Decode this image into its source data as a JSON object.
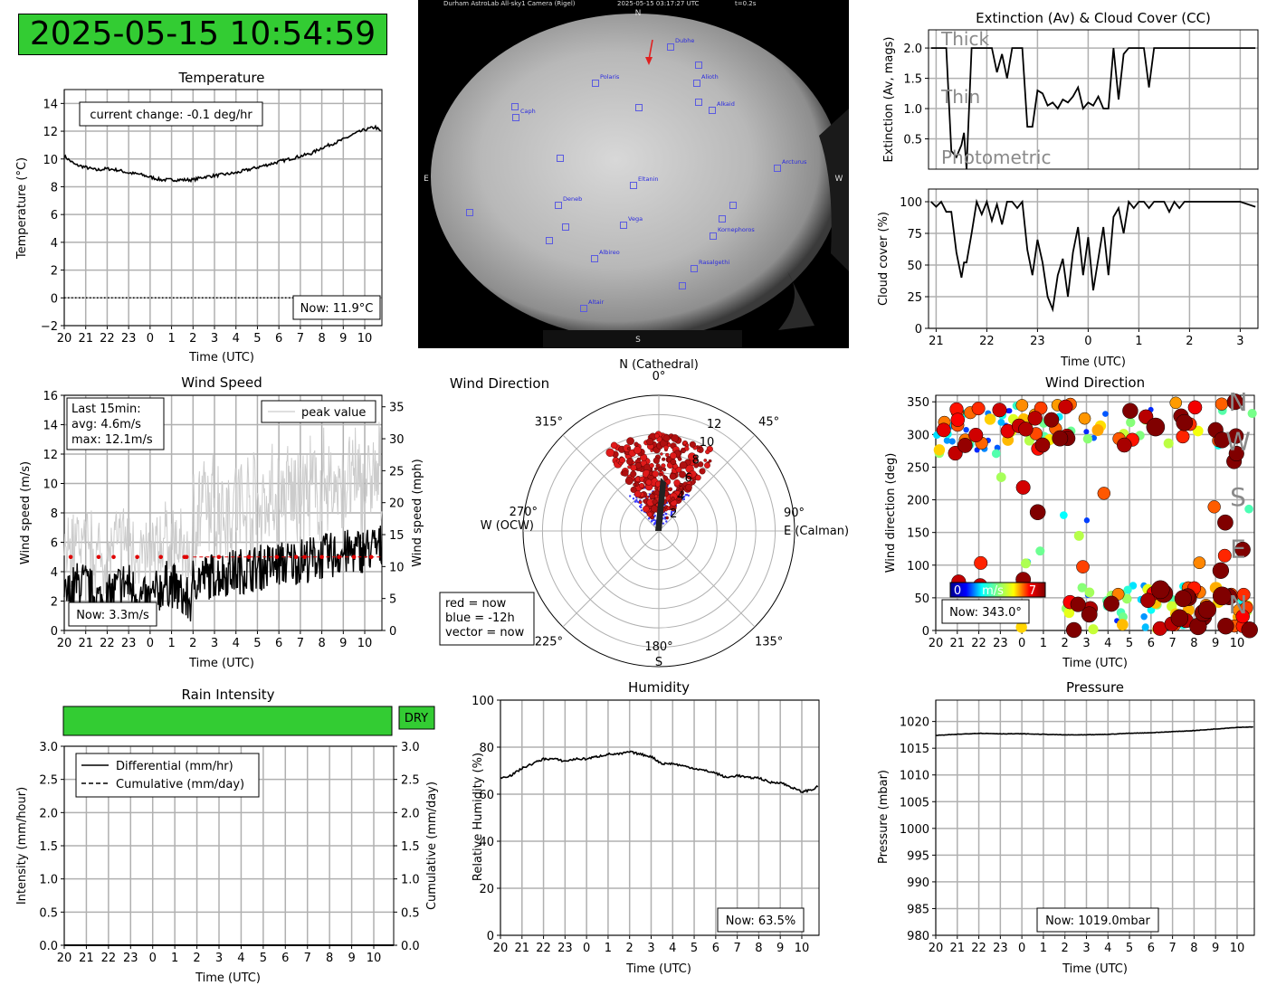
{
  "clock": "2025-05-15 10:54:59",
  "hour_ticks": [
    "20",
    "21",
    "22",
    "23",
    "0",
    "1",
    "2",
    "3",
    "4",
    "5",
    "6",
    "7",
    "8",
    "9",
    "10"
  ],
  "axis_time_label": "Time (UTC)",
  "temperature": {
    "chart_data": {
      "type": "line",
      "title": "Temperature",
      "xlabel": "Time (UTC)",
      "ylabel": "Temperature (°C)",
      "ylim": [
        -2,
        15
      ],
      "yticks": [
        "−2",
        "0",
        "2",
        "4",
        "6",
        "8",
        "10",
        "12",
        "14"
      ],
      "xlim": [
        20,
        34.8
      ],
      "x": [
        20,
        20.5,
        21,
        21.5,
        22,
        22.5,
        23,
        23.5,
        24,
        24.5,
        25,
        25.5,
        26,
        26.5,
        27,
        27.5,
        28,
        28.5,
        29,
        29.5,
        30,
        30.5,
        31,
        31.5,
        32,
        32.5,
        33,
        33.5,
        34,
        34.5,
        34.8
      ],
      "values": [
        10.2,
        9.6,
        9.4,
        9.2,
        9.3,
        9.2,
        9.0,
        8.9,
        8.7,
        8.5,
        8.5,
        8.5,
        8.5,
        8.7,
        8.8,
        8.9,
        9.0,
        9.2,
        9.4,
        9.6,
        9.8,
        10.0,
        10.2,
        10.4,
        10.8,
        11.1,
        11.4,
        11.8,
        12.1,
        12.3,
        11.9
      ],
      "zero_line": 0,
      "grid": true
    },
    "note": "current change: -0.1 deg/hr",
    "now": "Now: 11.9°C"
  },
  "allsky": {
    "header_left": "Durham AstroLab All-sky1 Camera (Rigel)",
    "header_mid": "2025-05-15 03:17:27 UTC",
    "header_right": "t=0.2s",
    "N": "N",
    "S": "S",
    "E": "E",
    "W": "W",
    "stars": [
      {
        "name": "Dubhe",
        "pos": [
          741,
          52
        ]
      },
      {
        "name": "Polaris",
        "pos": [
          658,
          92
        ]
      },
      {
        "name": "Alioth",
        "pos": [
          770,
          92
        ]
      },
      {
        "name": "Alkaid",
        "pos": [
          787,
          122
        ]
      },
      {
        "name": "Caph",
        "pos": [
          570,
          130
        ]
      },
      {
        "name": "Arcturus",
        "pos": [
          859,
          186
        ]
      },
      {
        "name": "Eltanin",
        "pos": [
          700,
          205
        ]
      },
      {
        "name": "Deneb",
        "pos": [
          617,
          227
        ]
      },
      {
        "name": "Vega",
        "pos": [
          689,
          249
        ]
      },
      {
        "name": "Kornephoros",
        "pos": [
          788,
          261
        ]
      },
      {
        "name": "Albireo",
        "pos": [
          657,
          286
        ]
      },
      {
        "name": "Rasalgethi",
        "pos": [
          767,
          297
        ]
      },
      {
        "name": "Altair",
        "pos": [
          645,
          341
        ]
      }
    ],
    "extra_boxes": [
      [
        569,
        118
      ],
      [
        706,
        119
      ],
      [
        772,
        72
      ],
      [
        772,
        113
      ],
      [
        619,
        175
      ],
      [
        810,
        227
      ],
      [
        519,
        235
      ],
      [
        798,
        242
      ],
      [
        625,
        251
      ],
      [
        607,
        266
      ],
      [
        754,
        316
      ]
    ]
  },
  "extinction": {
    "chart_data": {
      "type": "line",
      "title": "Extinction (Av) & Cloud Cover (CC)",
      "ylabel": "Extinction (Av, mags)",
      "ylim": [
        0,
        2.3
      ],
      "yticks": [
        "0.5",
        "1.0",
        "1.5",
        "2.0"
      ],
      "xlim": [
        20.85,
        27.35
      ],
      "x": [
        20.9,
        21.0,
        21.1,
        21.2,
        21.3,
        21.4,
        21.5,
        21.55,
        21.6,
        21.7,
        21.8,
        21.9,
        22.0,
        22.1,
        22.2,
        22.3,
        22.4,
        22.5,
        22.6,
        22.7,
        22.8,
        22.9,
        23.0,
        23.1,
        23.2,
        23.3,
        23.4,
        23.5,
        23.6,
        23.7,
        23.8,
        23.9,
        24.0,
        24.1,
        24.2,
        24.3,
        24.4,
        24.5,
        24.6,
        24.7,
        24.8,
        24.9,
        25.0,
        25.1,
        25.2,
        25.3,
        25.4,
        25.5,
        25.6,
        25.7,
        25.8,
        25.9,
        26.0,
        26.5,
        27.0,
        27.3
      ],
      "values": [
        2.0,
        2.0,
        2.0,
        2.0,
        0.3,
        0.2,
        0.4,
        0.6,
        0.0,
        2.0,
        2.0,
        2.0,
        2.0,
        2.0,
        1.6,
        1.9,
        1.5,
        2.0,
        2.0,
        2.0,
        0.7,
        0.7,
        1.3,
        1.25,
        1.05,
        1.1,
        1.0,
        1.15,
        1.1,
        1.2,
        1.35,
        1.0,
        1.1,
        1.05,
        1.2,
        1.0,
        1.0,
        2.0,
        1.15,
        1.9,
        2.0,
        2.0,
        2.0,
        2.0,
        1.35,
        2.0,
        2.0,
        2.0,
        2.0,
        2.0,
        2.0,
        2.0,
        2.0,
        2.0,
        2.0,
        2.0
      ],
      "labels": [
        "Thick",
        "Thin",
        "Photometric"
      ],
      "grid": true
    }
  },
  "cloud": {
    "chart_data": {
      "type": "line",
      "ylabel": "Cloud cover (%)",
      "xlabel": "Time (UTC)",
      "ylim": [
        0,
        110
      ],
      "yticks": [
        "0",
        "25",
        "50",
        "75",
        "100"
      ],
      "xticks": [
        "21",
        "22",
        "23",
        "0",
        "1",
        "2",
        "3"
      ],
      "xlim": [
        20.85,
        27.35
      ],
      "x": [
        20.9,
        21.0,
        21.1,
        21.2,
        21.3,
        21.4,
        21.5,
        21.55,
        21.6,
        21.7,
        21.8,
        21.9,
        22.0,
        22.1,
        22.2,
        22.3,
        22.4,
        22.5,
        22.6,
        22.7,
        22.8,
        22.9,
        23.0,
        23.1,
        23.2,
        23.3,
        23.4,
        23.5,
        23.6,
        23.7,
        23.8,
        23.9,
        24.0,
        24.1,
        24.2,
        24.3,
        24.4,
        24.5,
        24.6,
        24.7,
        24.8,
        24.9,
        25.0,
        25.1,
        25.2,
        25.3,
        25.4,
        25.5,
        25.6,
        25.7,
        25.8,
        25.9,
        26.0,
        26.5,
        27.0,
        27.3
      ],
      "values": [
        100,
        96,
        100,
        92,
        92,
        60,
        40,
        52,
        52,
        75,
        100,
        90,
        100,
        85,
        98,
        82,
        100,
        100,
        95,
        100,
        62,
        42,
        70,
        52,
        25,
        15,
        42,
        55,
        25,
        60,
        80,
        42,
        72,
        30,
        55,
        80,
        42,
        88,
        95,
        75,
        100,
        95,
        100,
        100,
        95,
        100,
        100,
        100,
        92,
        100,
        95,
        100,
        100,
        100,
        100,
        96
      ],
      "grid": true
    }
  },
  "windspeed": {
    "chart_data": {
      "type": "line",
      "title": "Wind Speed",
      "xlabel": "Time (UTC)",
      "ylabel": "Wind speed (m/s)",
      "ylabel_right": "Wind speed (mph)",
      "ylim": [
        0,
        16
      ],
      "yticks": [
        "0",
        "2",
        "4",
        "6",
        "8",
        "10",
        "12",
        "14",
        "16"
      ],
      "yticks_right": [
        "0",
        "5",
        "10",
        "15",
        "20",
        "25",
        "30",
        "35"
      ],
      "xlim": [
        20,
        34.8
      ],
      "series": [
        {
          "name": "peak value",
          "color": "#cccccc"
        },
        {
          "color": "#000000"
        }
      ],
      "avg_level": 5,
      "note_lines": [
        "Last 15min:",
        "avg: 4.6m/s",
        "max: 12.1m/s"
      ],
      "grid": true
    },
    "now": "Now: 3.3m/s"
  },
  "winddir_polar": {
    "chart_data": {
      "type": "scatter",
      "title": "Wind Direction",
      "r_ticks": [
        "2",
        "4",
        "6",
        "8",
        "10",
        "12"
      ],
      "rmax": 14,
      "angle_labels": [
        "0°",
        "45°",
        "90°",
        "135°",
        "180°",
        "225°",
        "270°",
        "315°"
      ],
      "N_label": "N (Cathedral)",
      "E_label": "E (Calman)",
      "S_label": "S",
      "W_label": "W (OCW)",
      "legend_lines": [
        "red = now",
        "blue = -12h",
        "vector = now"
      ]
    }
  },
  "winddir_ts": {
    "chart_data": {
      "type": "scatter",
      "title": "Wind Direction",
      "xlabel": "Time (UTC)",
      "ylabel": "Wind direction (deg)",
      "ylim": [
        0,
        360
      ],
      "yticks": [
        "0",
        "50",
        "100",
        "150",
        "200",
        "250",
        "300",
        "350"
      ],
      "xlim": [
        20,
        34.8
      ],
      "compass": [
        "N",
        "W",
        "S",
        "E",
        "N"
      ],
      "colorbar": [
        "0",
        "m/s",
        "7"
      ],
      "grid": true
    },
    "now": "Now: 343.0°"
  },
  "rain": {
    "chart_data": {
      "type": "line",
      "title": "Rain Intensity",
      "xlabel": "Time (UTC)",
      "ylabel": "Intensity (mm/hour)",
      "ylabel_right": "Cumulative (mm/day)",
      "ylim": [
        0,
        3.0
      ],
      "yticks": [
        "0.0",
        "0.5",
        "1.0",
        "1.5",
        "2.0",
        "2.5",
        "3.0"
      ],
      "series": [
        {
          "name": "Differential (mm/hr)",
          "values": [
            0,
            0
          ],
          "style": "solid"
        },
        {
          "name": "Cumulative (mm/day)",
          "values": [
            0,
            0
          ],
          "style": "dashed"
        }
      ],
      "grid": true
    },
    "status": "DRY",
    "status_color": "#33cc33"
  },
  "humidity": {
    "chart_data": {
      "type": "line",
      "title": "Humidity",
      "xlabel": "Time (UTC)",
      "ylabel": "Relative Humidity (%)",
      "ylim": [
        0,
        100
      ],
      "yticks": [
        "0",
        "20",
        "40",
        "60",
        "80",
        "100"
      ],
      "xlim": [
        20,
        34.8
      ],
      "x": [
        20,
        20.5,
        21,
        21.5,
        22,
        22.5,
        23,
        23.5,
        24,
        24.5,
        25,
        25.5,
        26,
        26.5,
        27,
        27.5,
        28,
        28.5,
        29,
        29.5,
        30,
        30.5,
        31,
        31.5,
        32,
        32.5,
        33,
        33.5,
        34,
        34.5,
        34.8
      ],
      "values": [
        67,
        68,
        71,
        73,
        75,
        75,
        74,
        75,
        75,
        76,
        77,
        77,
        78,
        77,
        76,
        73,
        73,
        72,
        71,
        70,
        69,
        67,
        68,
        67,
        67,
        65,
        65,
        63,
        61,
        62,
        63.5
      ],
      "grid": true
    },
    "now": "Now: 63.5%"
  },
  "pressure": {
    "chart_data": {
      "type": "line",
      "title": "Pressure",
      "xlabel": "Time (UTC)",
      "ylabel": "Pressure (mbar)",
      "ylim": [
        980,
        1024
      ],
      "yticks": [
        "980",
        "985",
        "990",
        "995",
        "1000",
        "1005",
        "1010",
        "1015",
        "1020"
      ],
      "xlim": [
        20,
        34.8
      ],
      "x": [
        20,
        21,
        22,
        23,
        24,
        25,
        26,
        27,
        28,
        29,
        30,
        31,
        32,
        33,
        34,
        34.8
      ],
      "values": [
        1017.4,
        1017.6,
        1017.8,
        1017.7,
        1017.7,
        1017.6,
        1017.5,
        1017.5,
        1017.6,
        1017.8,
        1017.9,
        1018.1,
        1018.3,
        1018.6,
        1018.9,
        1019.0
      ],
      "grid": true
    },
    "now": "Now: 1019.0mbar"
  }
}
